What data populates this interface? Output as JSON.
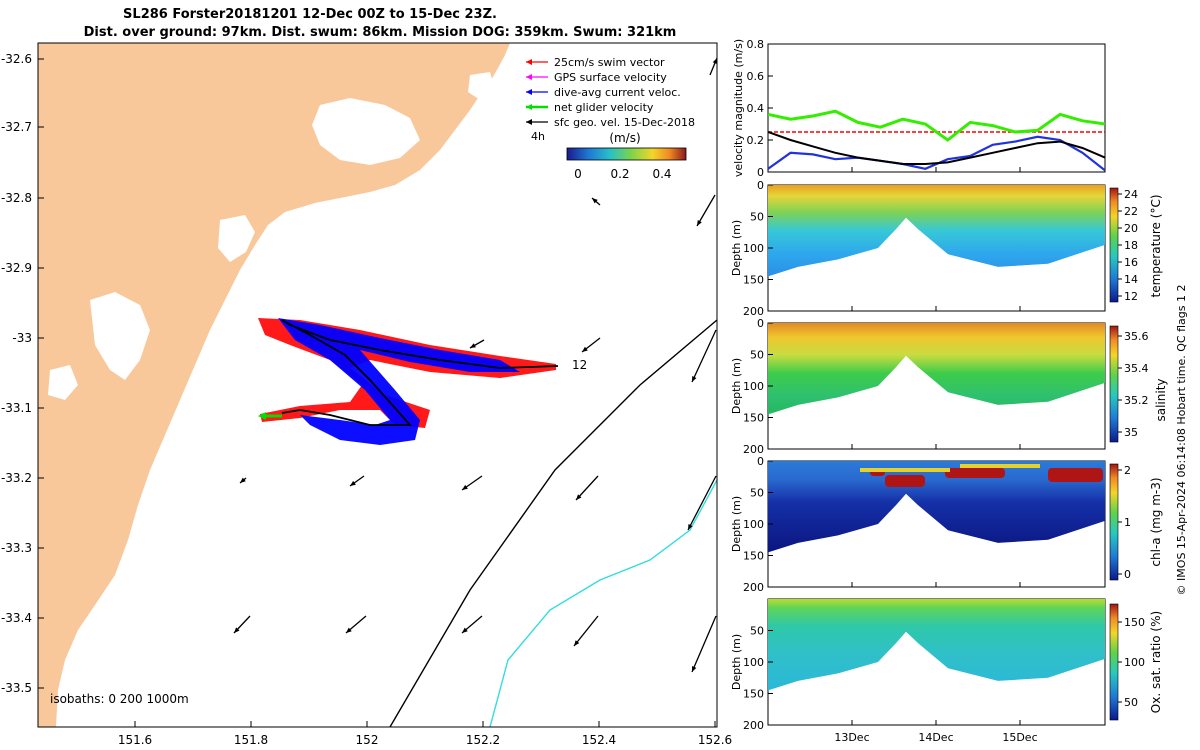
{
  "header": {
    "title_line1": "SL286 Forster20181201 12-Dec 00Z to 15-Dec 23Z.",
    "title_line2": "Dist. over ground: 97km. Dist. swum: 86km. Mission DOG: 359km. Swum: 321km"
  },
  "footer": {
    "credit": "© IMOS 15-Apr-2024 06:14:08 Hobart time. QC flags 1  2"
  },
  "colors": {
    "land": "#F9C89A",
    "swim_vector": "#ff0000",
    "gps_surface": "#ff00ff",
    "dive_avg": "#0000ff",
    "net_glider": "#00e000",
    "sfc_geo": "#000000",
    "isobath_200": "#000000",
    "isobath_1000": "#33dddd",
    "mag_swim": "#ff0000",
    "mag_net": "#33ee00",
    "mag_dive": "#2233dd",
    "mag_sfc": "#000000"
  },
  "map": {
    "xticks": [
      "151.6",
      "151.8",
      "152",
      "152.2",
      "152.4",
      "152.6"
    ],
    "yticks": [
      "-32.6",
      "-32.7",
      "-32.8",
      "-32.9",
      "-33",
      "-33.1",
      "-33.2",
      "-33.3",
      "-33.4",
      "-33.5"
    ],
    "legend": [
      {
        "label": "25cm/s swim vector",
        "icon": "red-arrow"
      },
      {
        "label": "GPS surface velocity",
        "icon": "magenta-arrow"
      },
      {
        "label": "dive-avg current veloc.",
        "icon": "blue-arrow"
      },
      {
        "label": "net glider velocity",
        "icon": "green-arrow"
      },
      {
        "label": "sfc geo. vel. 15-Dec-2018",
        "icon": "black-arrow"
      }
    ],
    "label_4h": "4h",
    "colorbar_label": "(m/s)",
    "colorbar_ticks": [
      "0",
      "0.2",
      "0.4"
    ],
    "track_label": "12",
    "isobaths_text": "isobaths: 0   200  1000m"
  },
  "time_axis": {
    "ticks": [
      "13Dec",
      "14Dec",
      "15Dec"
    ]
  },
  "panels": {
    "velocity": {
      "ylabel": "velocity magnitude (m/s)",
      "yticks": [
        "0",
        "0.2",
        "0.4",
        "0.6",
        "0.8"
      ]
    },
    "temperature": {
      "ylabel": "Depth (m)",
      "cb_label": "temperature (°C)",
      "yticks": [
        "0",
        "50",
        "100",
        "150",
        "200"
      ],
      "cb_ticks": [
        "24",
        "22",
        "20",
        "18",
        "16",
        "14",
        "12"
      ]
    },
    "salinity": {
      "ylabel": "Depth (m)",
      "cb_label": "salinity",
      "yticks": [
        "0",
        "50",
        "100",
        "150",
        "200"
      ],
      "cb_ticks": [
        "35.6",
        "35.4",
        "35.2",
        "35"
      ]
    },
    "chla": {
      "ylabel": "Depth (m)",
      "cb_label": "chl-a (mg m-3)",
      "yticks": [
        "0",
        "50",
        "100",
        "150",
        "200"
      ],
      "cb_ticks": [
        "2",
        "1",
        "0"
      ]
    },
    "oxygen": {
      "ylabel": "Depth (m)",
      "cb_label": "Ox. sat. ratio (%)",
      "yticks": [
        "50",
        "100",
        "150",
        "200"
      ],
      "cb_ticks": [
        "150",
        "100",
        "50"
      ]
    }
  },
  "chart_data": [
    {
      "type": "line",
      "title": "",
      "ylabel": "velocity magnitude (m/s)",
      "ylim": [
        0,
        0.8
      ],
      "x_ticks": [
        "13Dec",
        "14Dec",
        "15Dec"
      ],
      "series": [
        {
          "name": "25cm/s swim vector",
          "values": [
            0.25,
            0.25,
            0.25,
            0.25,
            0.25,
            0.25,
            0.25,
            0.25,
            0.25,
            0.25,
            0.25,
            0.25,
            0.25,
            0.25,
            0.25,
            0.25
          ]
        },
        {
          "name": "net glider velocity",
          "values": [
            0.36,
            0.33,
            0.35,
            0.38,
            0.31,
            0.28,
            0.33,
            0.3,
            0.2,
            0.31,
            0.29,
            0.25,
            0.26,
            0.36,
            0.32,
            0.3
          ]
        },
        {
          "name": "dive-avg current veloc.",
          "values": [
            0.02,
            0.12,
            0.11,
            0.08,
            0.09,
            0.07,
            0.05,
            0.02,
            0.08,
            0.1,
            0.17,
            0.19,
            0.22,
            0.2,
            0.12,
            0.01
          ]
        },
        {
          "name": "sfc geo. vel. 15-Dec-2018",
          "values": [
            0.25,
            0.2,
            0.16,
            0.12,
            0.09,
            0.07,
            0.05,
            0.05,
            0.06,
            0.09,
            0.12,
            0.15,
            0.18,
            0.19,
            0.15,
            0.09
          ]
        }
      ]
    }
  ]
}
